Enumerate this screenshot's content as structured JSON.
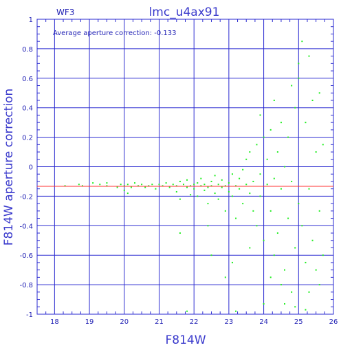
{
  "chart_data": {
    "type": "scatter",
    "title": "lmc_u4ax91",
    "frame_label": "WF3",
    "annotation": "Average aperture correction:  -0.133",
    "xlabel": "F814W",
    "ylabel": "F814W aperture correction",
    "xlim": [
      17.5,
      26
    ],
    "ylim": [
      -1,
      1
    ],
    "x_ticks": [
      "18",
      "19",
      "20",
      "21",
      "22",
      "23",
      "24",
      "25",
      "26"
    ],
    "y_ticks": [
      "1",
      "0.8",
      "0.6",
      "0.4",
      "0.2",
      "0",
      "-0.2",
      "-0.4",
      "-0.6",
      "-0.8",
      "-1"
    ],
    "grid": true,
    "reference_line": {
      "y": -0.133,
      "color": "#ff3030"
    },
    "colors": {
      "points": "#22ee22",
      "grid": "#2a2ad0",
      "text": "#1f1fb4"
    },
    "points_generated_counts": {
      "note_free": true
    },
    "points": [
      [
        18.3,
        -0.13
      ],
      [
        18.7,
        -0.12
      ],
      [
        18.8,
        -0.13
      ],
      [
        19.1,
        -0.11
      ],
      [
        19.3,
        -0.12
      ],
      [
        19.5,
        -0.13
      ],
      [
        19.5,
        -0.11
      ],
      [
        19.8,
        -0.14
      ],
      [
        19.9,
        -0.12
      ],
      [
        20.0,
        -0.13
      ],
      [
        20.0,
        -0.16
      ],
      [
        20.1,
        -0.12
      ],
      [
        20.1,
        -0.18
      ],
      [
        20.2,
        -0.14
      ],
      [
        20.3,
        -0.11
      ],
      [
        20.4,
        -0.13
      ],
      [
        20.5,
        -0.12
      ],
      [
        20.6,
        -0.14
      ],
      [
        20.7,
        -0.13
      ],
      [
        20.8,
        -0.12
      ],
      [
        20.9,
        -0.15
      ],
      [
        21.0,
        -0.12
      ],
      [
        21.1,
        -0.13
      ],
      [
        21.2,
        -0.11
      ],
      [
        21.3,
        -0.14
      ],
      [
        21.4,
        -0.12
      ],
      [
        21.5,
        -0.13
      ],
      [
        21.5,
        -0.17
      ],
      [
        21.6,
        -0.1
      ],
      [
        21.6,
        -0.22
      ],
      [
        21.7,
        -0.12
      ],
      [
        21.8,
        -0.14
      ],
      [
        21.8,
        -0.09
      ],
      [
        21.9,
        -0.13
      ],
      [
        21.9,
        -0.19
      ],
      [
        22.0,
        -0.12
      ],
      [
        22.0,
        -0.15
      ],
      [
        22.1,
        -0.11
      ],
      [
        22.1,
        -0.2
      ],
      [
        22.2,
        -0.13
      ],
      [
        22.2,
        -0.08
      ],
      [
        22.3,
        -0.16
      ],
      [
        22.3,
        -0.12
      ],
      [
        22.4,
        -0.14
      ],
      [
        22.4,
        -0.25
      ],
      [
        22.5,
        -0.1
      ],
      [
        22.5,
        -0.13
      ],
      [
        22.6,
        -0.18
      ],
      [
        22.6,
        -0.06
      ],
      [
        22.7,
        -0.12
      ],
      [
        22.7,
        -0.22
      ],
      [
        22.8,
        -0.14
      ],
      [
        22.8,
        -0.09
      ],
      [
        22.9,
        -0.13
      ],
      [
        22.9,
        -0.3
      ],
      [
        23.0,
        -0.11
      ],
      [
        23.0,
        -0.17
      ],
      [
        23.1,
        -0.05
      ],
      [
        23.1,
        -0.2
      ],
      [
        23.2,
        -0.13
      ],
      [
        23.2,
        -0.35
      ],
      [
        23.3,
        -0.08
      ],
      [
        23.3,
        -0.15
      ],
      [
        23.4,
        -0.02
      ],
      [
        23.4,
        -0.25
      ],
      [
        23.5,
        0.05
      ],
      [
        23.5,
        -0.12
      ],
      [
        23.6,
        -0.18
      ],
      [
        23.6,
        0.1
      ],
      [
        23.7,
        -0.3
      ],
      [
        23.7,
        -0.1
      ],
      [
        23.8,
        0.15
      ],
      [
        23.8,
        -0.4
      ],
      [
        23.9,
        -0.05
      ],
      [
        23.9,
        -0.2
      ],
      [
        24.0,
        0.2
      ],
      [
        24.0,
        -0.5
      ],
      [
        24.1,
        -0.12
      ],
      [
        24.1,
        0.05
      ],
      [
        24.2,
        -0.3
      ],
      [
        24.2,
        0.25
      ],
      [
        24.3,
        -0.6
      ],
      [
        24.3,
        -0.08
      ],
      [
        24.4,
        0.1
      ],
      [
        24.4,
        -0.45
      ],
      [
        24.5,
        -0.15
      ],
      [
        24.5,
        0.3
      ],
      [
        24.6,
        -0.7
      ],
      [
        24.6,
        0.0
      ],
      [
        24.7,
        -0.35
      ],
      [
        24.7,
        0.2
      ],
      [
        24.8,
        -0.85
      ],
      [
        24.8,
        -0.1
      ],
      [
        24.9,
        0.4
      ],
      [
        24.9,
        -0.55
      ],
      [
        25.0,
        0.6
      ],
      [
        25.0,
        -0.25
      ],
      [
        25.1,
        0.85
      ],
      [
        25.1,
        -0.4
      ],
      [
        25.2,
        0.3
      ],
      [
        25.2,
        -0.65
      ],
      [
        25.3,
        0.75
      ],
      [
        25.3,
        -0.15
      ],
      [
        25.4,
        0.45
      ],
      [
        25.4,
        -0.5
      ],
      [
        25.5,
        0.1
      ],
      [
        25.5,
        -0.7
      ],
      [
        25.6,
        0.5
      ],
      [
        25.6,
        -0.3
      ],
      [
        25.7,
        0.15
      ],
      [
        25.7,
        -0.6
      ],
      [
        22.5,
        -0.6
      ],
      [
        21.6,
        -0.45
      ],
      [
        23.1,
        -0.65
      ],
      [
        22.9,
        -0.75
      ],
      [
        24.9,
        -0.95
      ],
      [
        21.8,
        -0.98
      ],
      [
        23.2,
        -0.98
      ],
      [
        24.0,
        -0.93
      ],
      [
        24.6,
        -0.93
      ],
      [
        25.2,
        -0.97
      ],
      [
        24.3,
        0.45
      ],
      [
        24.8,
        0.55
      ],
      [
        25.0,
        0.7
      ],
      [
        24.5,
        -0.8
      ],
      [
        23.6,
        -0.55
      ],
      [
        22.4,
        -0.4
      ],
      [
        23.9,
        0.35
      ],
      [
        24.2,
        -0.75
      ],
      [
        25.3,
        -0.85
      ],
      [
        25.6,
        -0.8
      ]
    ]
  }
}
